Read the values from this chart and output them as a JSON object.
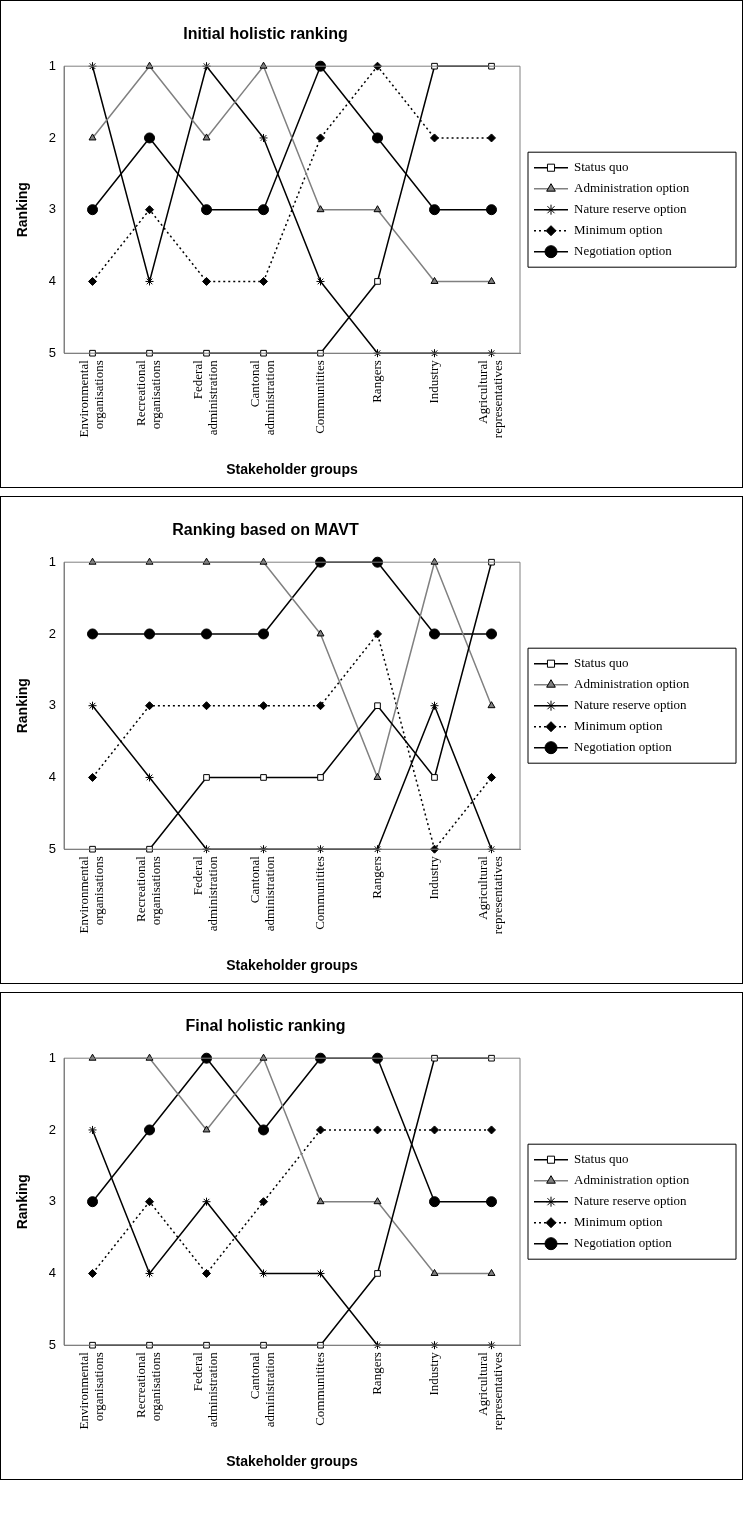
{
  "chart_data": [
    {
      "type": "line",
      "title": "Initial holistic ranking",
      "xlabel": "Stakeholder groups",
      "ylabel": "Ranking",
      "categories": [
        "Environmental organisations",
        "Recreational organisations",
        "Federal administration",
        "Cantonal administration",
        "Communitites",
        "Rangers",
        "Industry",
        "Agricultural representatives"
      ],
      "ylim": [
        5,
        1
      ],
      "yticks": [
        1,
        2,
        3,
        4,
        5
      ],
      "grid": false,
      "legend": "right",
      "series": [
        {
          "name": "Status quo",
          "color": "#000000",
          "marker": "square",
          "line_style": "solid",
          "values": [
            5,
            5,
            5,
            5,
            5,
            4,
            1,
            1
          ]
        },
        {
          "name": "Administration option",
          "color": "#808080",
          "marker": "triangle",
          "line_style": "solid",
          "values": [
            2,
            1,
            2,
            1,
            3,
            3,
            4,
            4
          ]
        },
        {
          "name": "Nature reserve option",
          "color": "#000000",
          "marker": "cross",
          "line_style": "solid",
          "values": [
            1,
            4,
            1,
            2,
            4,
            5,
            5,
            5
          ]
        },
        {
          "name": "Minimum option",
          "color": "#000000",
          "marker": "diamond",
          "line_style": "dotted",
          "values": [
            4,
            3,
            4,
            4,
            2,
            1,
            2,
            2
          ]
        },
        {
          "name": "Negotiation option",
          "color": "#000000",
          "marker": "circle",
          "line_style": "solid",
          "values": [
            3,
            2,
            3,
            3,
            1,
            2,
            3,
            3
          ]
        }
      ]
    },
    {
      "type": "line",
      "title": "Ranking based on MAVT",
      "xlabel": "Stakeholder groups",
      "ylabel": "Ranking",
      "categories": [
        "Environmental organisations",
        "Recreational organisations",
        "Federal administration",
        "Cantonal administration",
        "Communitites",
        "Rangers",
        "Industry",
        "Agricultural representatives"
      ],
      "ylim": [
        5,
        1
      ],
      "yticks": [
        1,
        2,
        3,
        4,
        5
      ],
      "grid": false,
      "legend": "right",
      "series": [
        {
          "name": "Status quo",
          "color": "#000000",
          "marker": "square",
          "line_style": "solid",
          "values": [
            5,
            5,
            4,
            4,
            4,
            3,
            4,
            1
          ]
        },
        {
          "name": "Administration option",
          "color": "#808080",
          "marker": "triangle",
          "line_style": "solid",
          "values": [
            1,
            1,
            1,
            1,
            2,
            4,
            1,
            3
          ]
        },
        {
          "name": "Nature reserve option",
          "color": "#000000",
          "marker": "cross",
          "line_style": "solid",
          "values": [
            3,
            4,
            5,
            5,
            5,
            5,
            3,
            5
          ]
        },
        {
          "name": "Minimum option",
          "color": "#000000",
          "marker": "diamond",
          "line_style": "dotted",
          "values": [
            4,
            3,
            3,
            3,
            3,
            2,
            5,
            4
          ]
        },
        {
          "name": "Negotiation option",
          "color": "#000000",
          "marker": "circle",
          "line_style": "solid",
          "values": [
            2,
            2,
            2,
            2,
            1,
            1,
            2,
            2
          ]
        }
      ]
    },
    {
      "type": "line",
      "title": "Final holistic ranking",
      "xlabel": "Stakeholder groups",
      "ylabel": "Ranking",
      "categories": [
        "Environmental organisations",
        "Recreational organisations",
        "Federal administration",
        "Cantonal administration",
        "Communitites",
        "Rangers",
        "Industry",
        "Agricultural representatives"
      ],
      "ylim": [
        5,
        1
      ],
      "yticks": [
        1,
        2,
        3,
        4,
        5
      ],
      "grid": false,
      "legend": "right",
      "series": [
        {
          "name": "Status quo",
          "color": "#000000",
          "marker": "square",
          "line_style": "solid",
          "values": [
            5,
            5,
            5,
            5,
            5,
            4,
            1,
            1
          ]
        },
        {
          "name": "Administration option",
          "color": "#808080",
          "marker": "triangle",
          "line_style": "solid",
          "values": [
            1,
            1,
            2,
            1,
            3,
            3,
            4,
            4
          ]
        },
        {
          "name": "Nature reserve option",
          "color": "#000000",
          "marker": "cross",
          "line_style": "solid",
          "values": [
            2,
            4,
            3,
            4,
            4,
            5,
            5,
            5
          ]
        },
        {
          "name": "Minimum option",
          "color": "#000000",
          "marker": "diamond",
          "line_style": "dotted",
          "values": [
            4,
            3,
            4,
            3,
            2,
            2,
            2,
            2
          ]
        },
        {
          "name": "Negotiation option",
          "color": "#000000",
          "marker": "circle",
          "line_style": "solid",
          "values": [
            3,
            2,
            1,
            2,
            1,
            1,
            3,
            3
          ]
        }
      ]
    }
  ]
}
